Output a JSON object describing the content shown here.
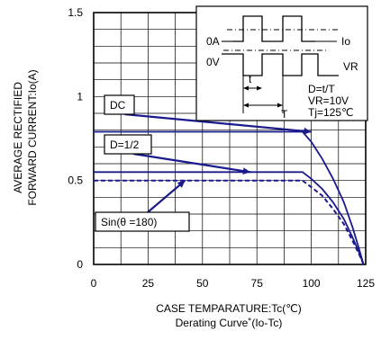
{
  "chart_data": {
    "type": "line",
    "title": "",
    "caption": "Derating Curve˚(Io-Tc)",
    "xlabel": "CASE TEMPARATURE:Tc(℃)",
    "ylabel_line1": "AVERAGE RECTIFIED",
    "ylabel_line2": "FORWARD CURRENT:Io(A)",
    "xlim": [
      0,
      125
    ],
    "ylim": [
      0,
      1.5
    ],
    "x_ticks": [
      {
        "value": 0,
        "label": "0"
      },
      {
        "value": 25,
        "label": "25"
      },
      {
        "value": 50,
        "label": "50"
      },
      {
        "value": 75,
        "label": "75"
      },
      {
        "value": 100,
        "label": "100"
      },
      {
        "value": 125,
        "label": "125"
      }
    ],
    "y_ticks": [
      {
        "value": 0,
        "label": "0"
      },
      {
        "value": 0.5,
        "label": "0.5"
      },
      {
        "value": 1,
        "label": "1"
      },
      {
        "value": 1.5,
        "label": "1.5"
      }
    ],
    "grid": true,
    "series": [
      {
        "name": "DC",
        "color": "#1a1a8c",
        "dash": false,
        "points": [
          [
            0,
            0.79
          ],
          [
            96,
            0.79
          ],
          [
            100,
            0.73
          ],
          [
            105,
            0.63
          ],
          [
            110,
            0.51
          ],
          [
            115,
            0.37
          ],
          [
            119,
            0.22
          ],
          [
            122,
            0.09
          ],
          [
            124,
            0
          ]
        ]
      },
      {
        "name": "D=1/2",
        "color": "#1a1a8c",
        "dash": false,
        "points": [
          [
            0,
            0.55
          ],
          [
            96,
            0.55
          ],
          [
            100,
            0.51
          ],
          [
            105,
            0.45
          ],
          [
            110,
            0.37
          ],
          [
            115,
            0.27
          ],
          [
            119,
            0.16
          ],
          [
            122,
            0.07
          ],
          [
            124,
            0
          ]
        ]
      },
      {
        "name": "Sin(θ =180)",
        "color": "#1a1a8c",
        "dash": true,
        "points": [
          [
            0,
            0.5
          ],
          [
            96,
            0.5
          ],
          [
            100,
            0.46
          ],
          [
            105,
            0.41
          ],
          [
            110,
            0.33
          ],
          [
            115,
            0.24
          ],
          [
            119,
            0.14
          ],
          [
            122,
            0.06
          ],
          [
            124,
            0
          ]
        ]
      }
    ],
    "legend_labels": [
      {
        "series": "DC",
        "text": "DC",
        "anchor_x": 100,
        "anchor_y": 0.79
      },
      {
        "series": "D=1/2",
        "text": "D=1/2",
        "anchor_x": 72,
        "anchor_y": 0.55
      },
      {
        "series": "Sin(θ =180)",
        "text": "Sin(θ =180)",
        "anchor_x": 42,
        "anchor_y": 0.5
      }
    ],
    "inset": {
      "current_label": "0A",
      "voltage_label": "0V",
      "io_label": "Io",
      "vr_label": "VR",
      "t_label": "t",
      "T_label": "T",
      "conditions": [
        "D=t/T",
        "VR=10V",
        "Tj=125℃"
      ]
    }
  }
}
